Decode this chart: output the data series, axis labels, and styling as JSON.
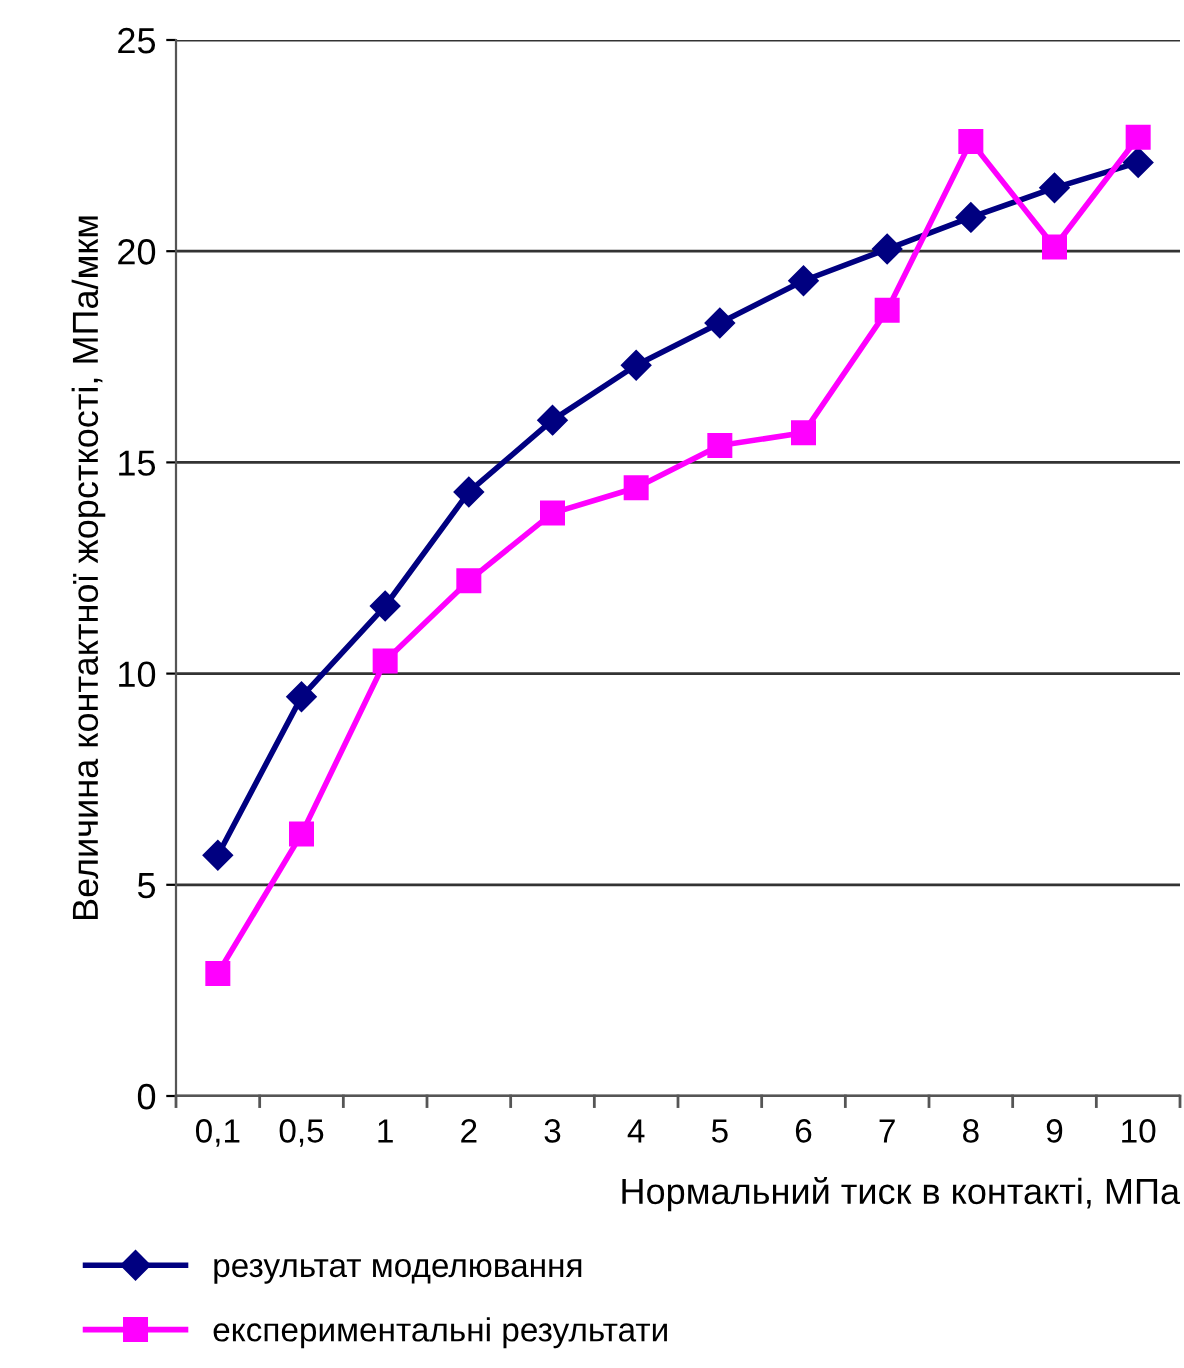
{
  "chart_data": {
    "type": "line",
    "xlabel": "Нормальний тиск в контакті, МПа",
    "ylabel": "Величина контактної жорсткості, МПа/мкм",
    "categories": [
      "0,1",
      "0,5",
      "1",
      "2",
      "3",
      "4",
      "5",
      "6",
      "7",
      "8",
      "9",
      "10"
    ],
    "series": [
      {
        "name": "результат моделювання",
        "color": "#000080",
        "marker": "diamond",
        "values": [
          5.7,
          9.45,
          11.6,
          14.3,
          16.0,
          17.3,
          18.3,
          19.3,
          20.05,
          20.8,
          21.5,
          22.1
        ]
      },
      {
        "name": "експериментальні результати",
        "color": "#ff00ff",
        "marker": "square",
        "values": [
          2.9,
          6.2,
          10.3,
          12.2,
          13.8,
          14.4,
          15.4,
          15.7,
          18.6,
          22.6,
          20.1,
          22.7
        ]
      }
    ],
    "ylim": [
      0,
      25
    ],
    "yticks": [
      0,
      5,
      10,
      15,
      20,
      25
    ],
    "grid": "y",
    "legend": "bottom",
    "line_style": "solid"
  }
}
